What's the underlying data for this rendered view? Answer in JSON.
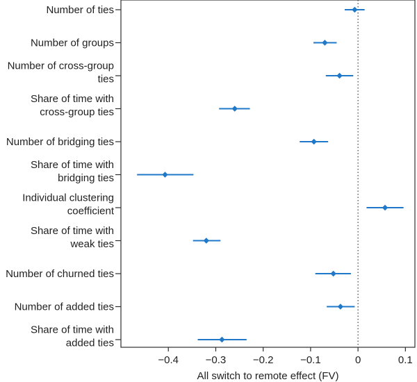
{
  "chart_data": {
    "type": "scatter",
    "title": "",
    "xlabel": "All switch to remote effect (FV)",
    "ylabel": "",
    "xlim": [
      -0.5,
      0.12
    ],
    "xticks": [
      -0.4,
      -0.3,
      -0.2,
      -0.1,
      0,
      0.1
    ],
    "xtick_labels": [
      "−0.4",
      "−0.3",
      "−0.2",
      "−0.1",
      "0",
      "0.1"
    ],
    "reference_line": 0,
    "grid": false,
    "legend": "none",
    "marker_color": "#1f78c8",
    "errorbar_color": "#1f78c8",
    "categories": [
      {
        "label_lines": [
          "Number of ties"
        ],
        "value": -0.007,
        "ci": [
          -0.028,
          0.014
        ]
      },
      {
        "label_lines": [
          "Number of groups"
        ],
        "value": -0.07,
        "ci": [
          -0.094,
          -0.045
        ]
      },
      {
        "label_lines": [
          "Number of cross-group",
          "ties"
        ],
        "value": -0.039,
        "ci": [
          -0.068,
          -0.01
        ]
      },
      {
        "label_lines": [
          "Share of time with",
          "cross-group ties"
        ],
        "value": -0.26,
        "ci": [
          -0.293,
          -0.228
        ]
      },
      {
        "label_lines": [
          "Number of bridging ties"
        ],
        "value": -0.093,
        "ci": [
          -0.123,
          -0.063
        ]
      },
      {
        "label_lines": [
          "Share of time with",
          "bridging ties"
        ],
        "value": -0.407,
        "ci": [
          -0.466,
          -0.347
        ]
      },
      {
        "label_lines": [
          "Individual clustering",
          "coefficient"
        ],
        "value": 0.057,
        "ci": [
          0.018,
          0.096
        ]
      },
      {
        "label_lines": [
          "Share of time with",
          "weak ties"
        ],
        "value": -0.32,
        "ci": [
          -0.348,
          -0.29
        ]
      },
      {
        "label_lines": [
          "Number of churned ties"
        ],
        "value": -0.052,
        "ci": [
          -0.09,
          -0.015
        ]
      },
      {
        "label_lines": [
          "Number of added ties"
        ],
        "value": -0.037,
        "ci": [
          -0.066,
          -0.007
        ]
      },
      {
        "label_lines": [
          "Share of time with",
          "added ties"
        ],
        "value": -0.287,
        "ci": [
          -0.338,
          -0.235
        ]
      }
    ]
  }
}
